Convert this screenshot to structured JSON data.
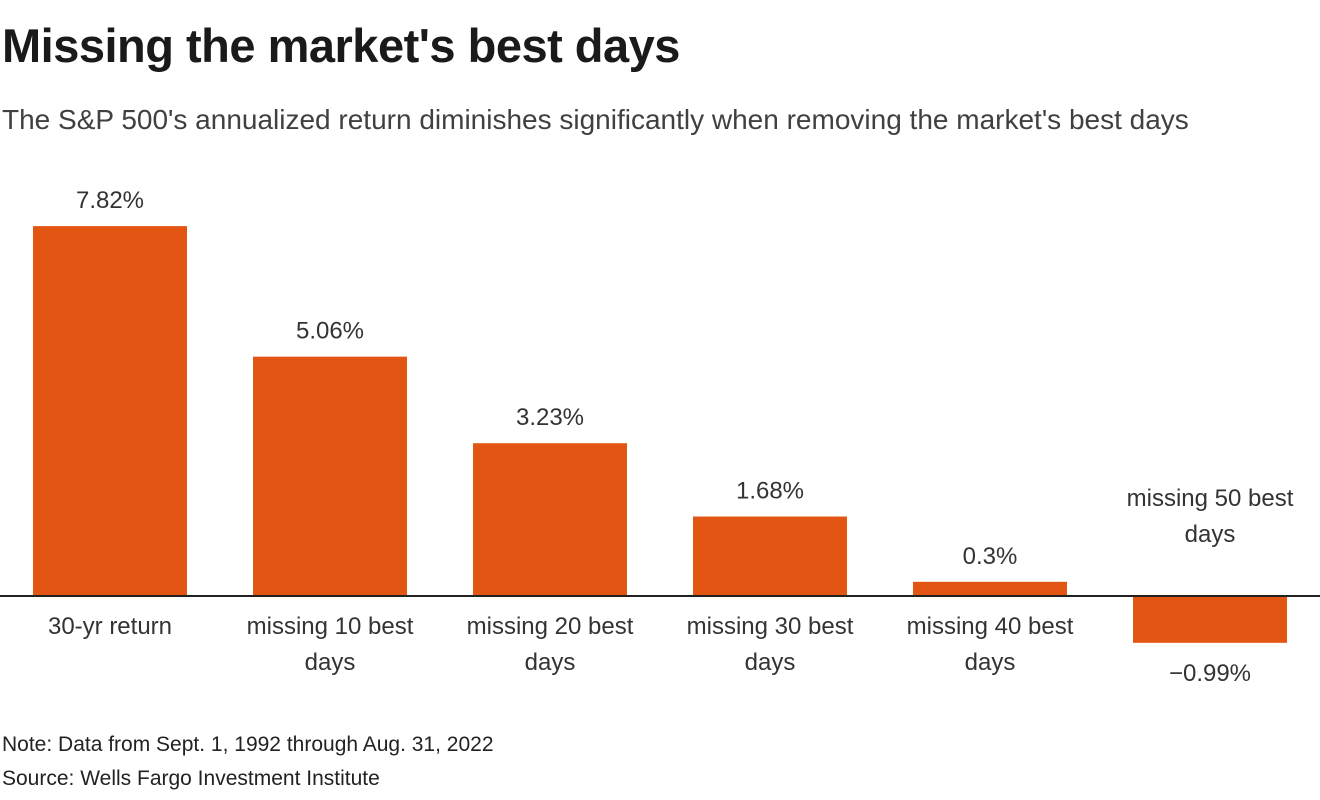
{
  "chart_data": {
    "type": "bar",
    "title": "Missing the market's best days",
    "subtitle": "The S&P 500's annualized return diminishes significantly when removing the market's best days",
    "categories": [
      "30-yr return",
      "missing 10 best days",
      "missing 20 best days",
      "missing 30 best days",
      "missing 40 best days",
      "missing 50 best days"
    ],
    "category_lines": [
      [
        "30-yr return"
      ],
      [
        "missing 10 best",
        "days"
      ],
      [
        "missing 20 best",
        "days"
      ],
      [
        "missing 30 best",
        "days"
      ],
      [
        "missing 40 best",
        "days"
      ],
      [
        "missing 50 best",
        "days"
      ]
    ],
    "values": [
      7.82,
      5.06,
      3.23,
      1.68,
      0.3,
      -0.99
    ],
    "value_labels": [
      "7.82%",
      "5.06%",
      "3.23%",
      "1.68%",
      "0.3%",
      "−0.99%"
    ],
    "unit": "%",
    "bar_color": "#e35512",
    "baseline_color": "#222222",
    "grid": false,
    "legend": "none",
    "xlabel": "",
    "ylabel": "",
    "note": "Note: Data from Sept. 1, 1992 through Aug. 31, 2022",
    "source": "Source: Wells Fargo Investment Institute"
  }
}
